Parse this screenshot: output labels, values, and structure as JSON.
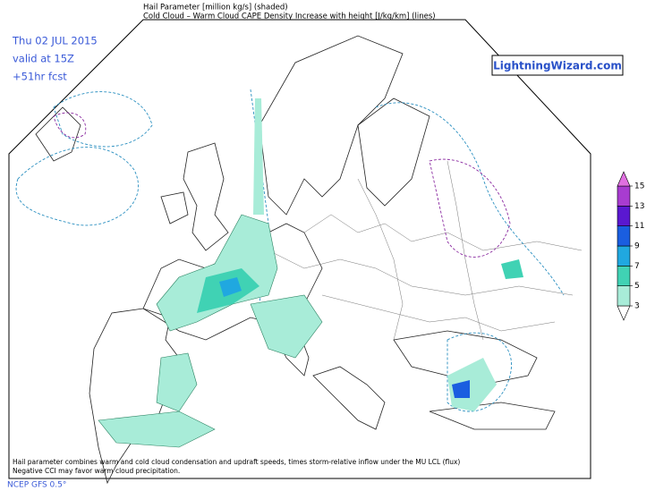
{
  "header": {
    "title": "Hail Parameter [million kg/s] (shaded)",
    "subtitle": "Cold Cloud – Warm Cloud CAPE Density Increase with height [J/kg/km] (lines)"
  },
  "info": {
    "date": "Thu 02 JUL 2015",
    "valid": "valid at 15Z",
    "forecast": "+51hr fcst"
  },
  "brand": "LightningWizard.com",
  "colorbar": {
    "ticks": [
      3,
      5,
      7,
      9,
      11,
      13,
      15
    ],
    "colors": [
      "#ffffff",
      "#a8ecd8",
      "#40d2b4",
      "#20a8e0",
      "#1a5ee0",
      "#5a18d0",
      "#a83cd0",
      "#e070e0"
    ]
  },
  "footer": {
    "line1": "Hail parameter combines warm and cold cloud condensation and updraft speeds, times storm-relative inflow under the MU LCL (flux)",
    "line2": "Negative CCI may favor warm cloud precipitation.",
    "model": "NCEP GFS 0.5°"
  }
}
